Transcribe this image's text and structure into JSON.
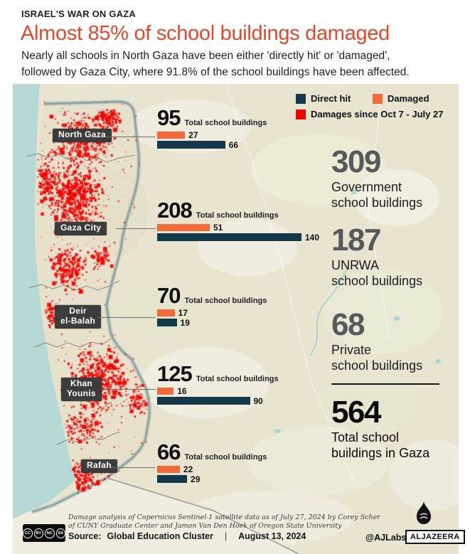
{
  "header": {
    "kicker": "ISRAEL'S WAR ON GAZA",
    "title": "Almost 85% of school buildings damaged",
    "subtitle_line1": "Nearly all schools in North Gaza have been either 'directly hit' or 'damaged',",
    "subtitle_line2": "followed by Gaza City, where 91.8% of the school buildings have been affected."
  },
  "legend": {
    "direct_hit": "Direct hit",
    "damaged": "Damaged",
    "damages_since": "Damages since Oct 7 - July 27"
  },
  "charts": {
    "total_label": "Total school buildings"
  },
  "regions": [
    {
      "name": "North Gaza",
      "label_lines": [
        "North Gaza"
      ],
      "total": "95",
      "damaged": "27",
      "direct_hit": "66"
    },
    {
      "name": "Gaza City",
      "label_lines": [
        "Gaza City"
      ],
      "total": "208",
      "damaged": "51",
      "direct_hit": "140"
    },
    {
      "name": "Deir el-Balah",
      "label_lines": [
        "Deir",
        "el-Balah"
      ],
      "total": "70",
      "damaged": "17",
      "direct_hit": "19"
    },
    {
      "name": "Khan Younis",
      "label_lines": [
        "Khan",
        "Younis"
      ],
      "total": "125",
      "damaged": "16",
      "direct_hit": "90"
    },
    {
      "name": "Rafah",
      "label_lines": [
        "Rafah"
      ],
      "total": "66",
      "damaged": "22",
      "direct_hit": "29"
    }
  ],
  "stats": [
    {
      "value": "309",
      "label_lines": [
        "Government",
        "school buildings"
      ]
    },
    {
      "value": "187",
      "label_lines": [
        "UNRWA",
        "school buildings"
      ]
    },
    {
      "value": "68",
      "label_lines": [
        "Private",
        "school buildings"
      ]
    },
    {
      "value": "564",
      "label_lines": [
        "Total school",
        "buildings in Gaza"
      ]
    }
  ],
  "footer": {
    "credit_line1": "Damage analysis of Copernicus Sentinel-1 satellite data as of July 27, 2024 by Corey Scher",
    "credit_line2": "of CUNY Graduate Center and Jamon Van Den Hoek of Oregon State University",
    "source_label": "Source:",
    "source_value": "Global Education Cluster",
    "separator": "|",
    "date": "August 13, 2024",
    "handle": "@AJLabs",
    "brand": "ALJAZEERA",
    "cc_labels": [
      "CC",
      "BY",
      "NC",
      "SA"
    ]
  },
  "colors": {
    "direct_hit": "#14384a",
    "damaged": "#f3693a",
    "damages": "#f20505",
    "title": "#e5472c",
    "stat_gray": "#58595b"
  },
  "chart_data": {
    "type": "bar",
    "title": "Almost 85% of school buildings damaged",
    "categories": [
      "North Gaza",
      "Gaza City",
      "Deir el-Balah",
      "Khan Younis",
      "Rafah"
    ],
    "series": [
      {
        "name": "Total school buildings",
        "values": [
          95,
          208,
          70,
          125,
          66
        ]
      },
      {
        "name": "Damaged",
        "values": [
          27,
          51,
          17,
          16,
          22
        ]
      },
      {
        "name": "Direct hit",
        "values": [
          66,
          140,
          19,
          90,
          29
        ]
      }
    ],
    "legend": [
      "Direct hit",
      "Damaged",
      "Damages since Oct 7 - July 27"
    ],
    "legend_position": "top-right",
    "orientation": "horizontal",
    "xlim": [
      0,
      208
    ],
    "summary_totals": {
      "government_school_buildings": 309,
      "unrwa_school_buildings": 187,
      "private_school_buildings": 68,
      "total_school_buildings_in_gaza": 564
    }
  }
}
